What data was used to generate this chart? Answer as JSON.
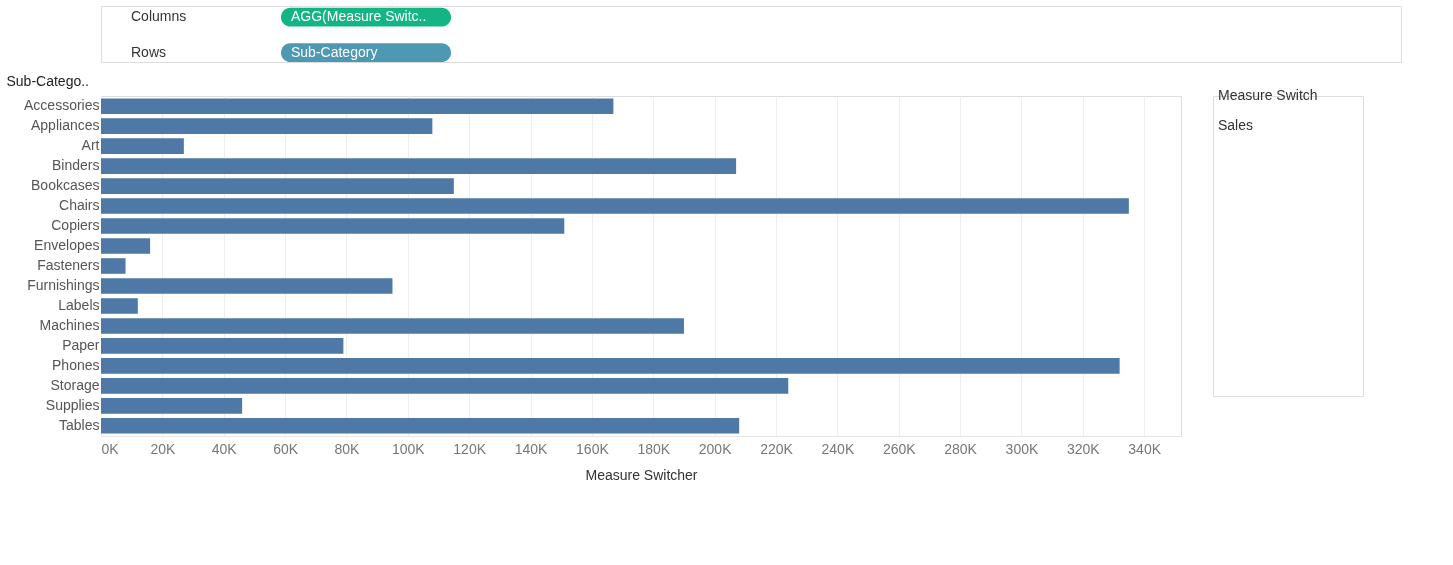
{
  "chart_data": {
    "type": "bar",
    "orientation": "horizontal",
    "ylabel": "Sub-Catego..",
    "xlabel": "Measure Switcher",
    "categories": [
      "Accessories",
      "Appliances",
      "Art",
      "Binders",
      "Bookcases",
      "Chairs",
      "Copiers",
      "Envelopes",
      "Fasteners",
      "Furnishings",
      "Labels",
      "Machines",
      "Paper",
      "Phones",
      "Storage",
      "Supplies",
      "Tables"
    ],
    "values": [
      167000,
      108000,
      27000,
      207000,
      115000,
      335000,
      151000,
      16000,
      8000,
      95000,
      12000,
      190000,
      79000,
      332000,
      224000,
      46000,
      208000
    ],
    "color": "#4e78a6",
    "xlim": [
      0,
      352000
    ],
    "xticks": [
      {
        "value": 0,
        "label": "0K"
      },
      {
        "value": 20000,
        "label": "20K"
      },
      {
        "value": 40000,
        "label": "40K"
      },
      {
        "value": 60000,
        "label": "60K"
      },
      {
        "value": 80000,
        "label": "80K"
      },
      {
        "value": 100000,
        "label": "100K"
      },
      {
        "value": 120000,
        "label": "120K"
      },
      {
        "value": 140000,
        "label": "140K"
      },
      {
        "value": 160000,
        "label": "160K"
      },
      {
        "value": 180000,
        "label": "180K"
      },
      {
        "value": 200000,
        "label": "200K"
      },
      {
        "value": 220000,
        "label": "220K"
      },
      {
        "value": 240000,
        "label": "240K"
      },
      {
        "value": 260000,
        "label": "260K"
      },
      {
        "value": 280000,
        "label": "280K"
      },
      {
        "value": 300000,
        "label": "300K"
      },
      {
        "value": 320000,
        "label": "320K"
      },
      {
        "value": 340000,
        "label": "340K"
      }
    ],
    "grid": "x",
    "annotations": [
      "Columns",
      "AGG(Measure Switc..",
      "Rows",
      "Sub-Category",
      "Measure Switch",
      "Sales"
    ]
  }
}
